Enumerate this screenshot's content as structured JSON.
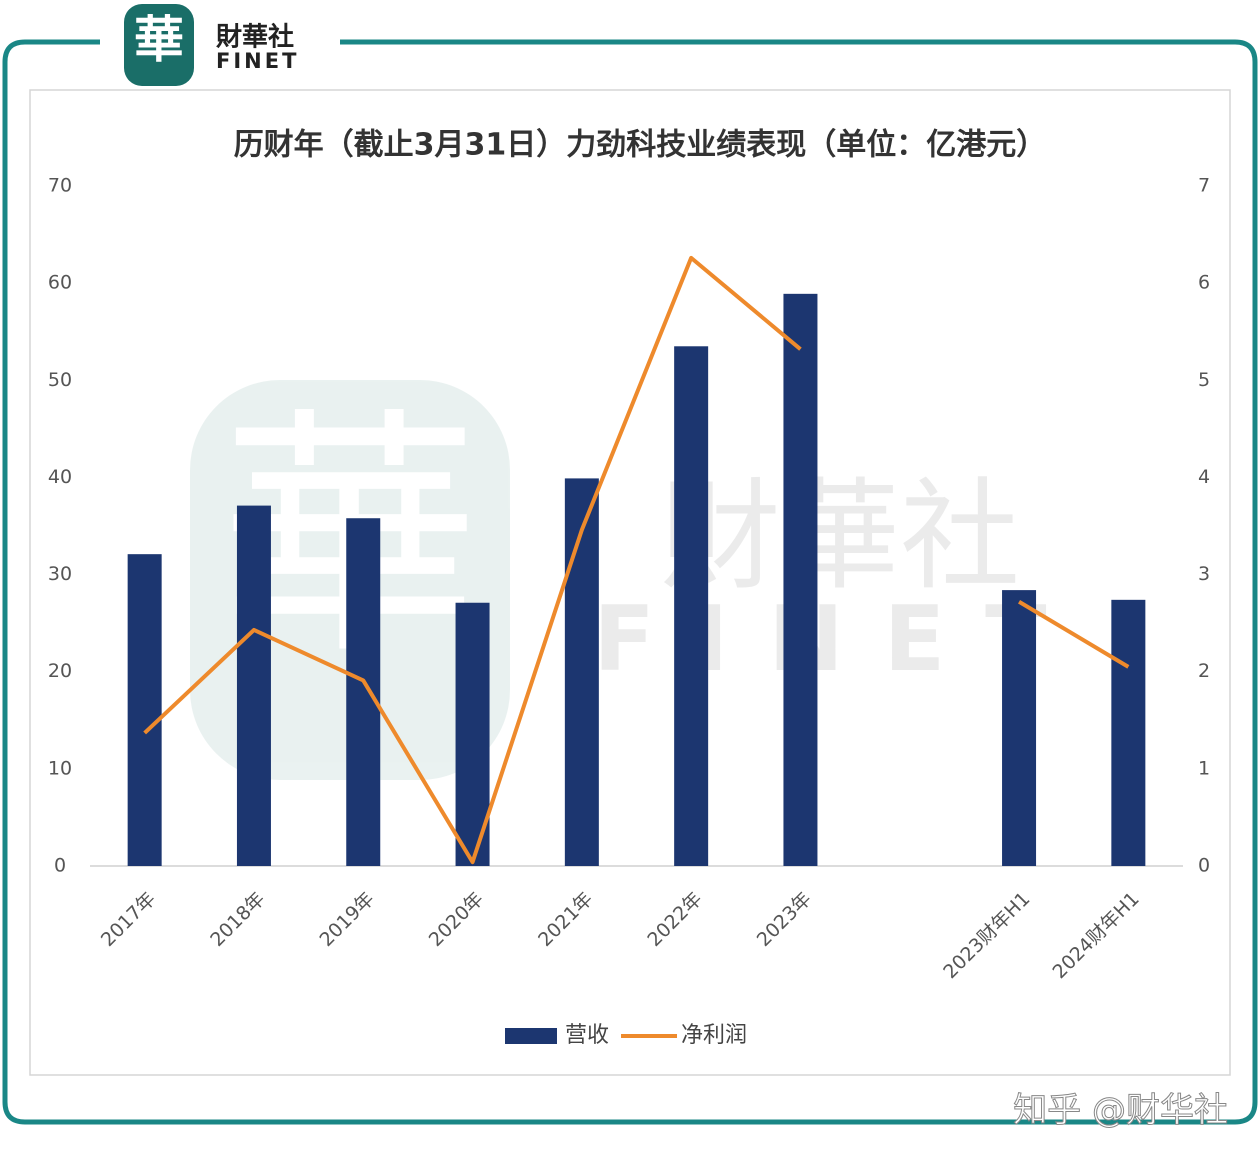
{
  "branding": {
    "logo_mark": "華",
    "name": "財華社",
    "name_en": "FINET",
    "credit": "知乎 @财华社"
  },
  "chart_data": {
    "type": "bar-line",
    "title": "历财年（截止3月31日）力劲科技业绩表现（单位：亿港元）",
    "categories": [
      "2017年",
      "2018年",
      "2019年",
      "2020年",
      "2021年",
      "2022年",
      "2023年",
      null,
      "2023财年H1",
      "2024财年H1"
    ],
    "series": [
      {
        "name": "营收",
        "type": "bar",
        "color": "#1c3670",
        "values": [
          32.1,
          37.1,
          35.8,
          27.1,
          39.9,
          53.5,
          58.9,
          null,
          28.4,
          27.4
        ]
      },
      {
        "name": "净利润",
        "type": "line",
        "axis": "y2",
        "color": "#ee8a2c",
        "values": [
          1.37,
          2.43,
          1.91,
          0.04,
          3.46,
          6.26,
          5.32,
          null,
          2.72,
          2.05
        ]
      }
    ],
    "ylim": [
      0,
      70
    ],
    "yticks": [
      0,
      10,
      20,
      30,
      40,
      50,
      60,
      70
    ],
    "y2lim": [
      0,
      7
    ],
    "y2ticks": [
      0,
      1,
      2,
      3,
      4,
      5,
      6,
      7
    ],
    "grid": false,
    "legend": "bottom"
  }
}
